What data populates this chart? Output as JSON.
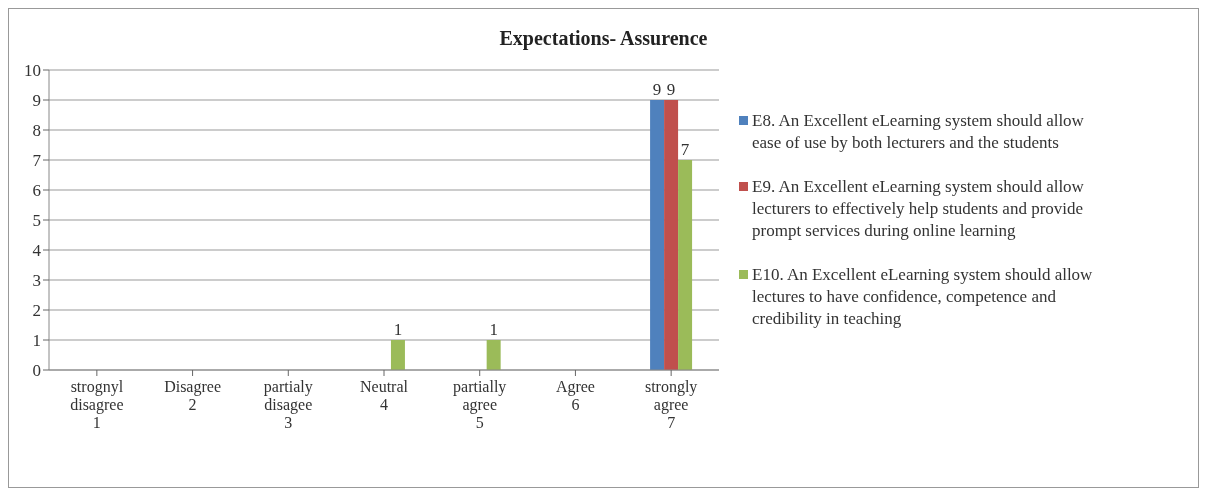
{
  "chart_data": {
    "type": "bar",
    "title": "Expectations- Assurence",
    "categories": [
      "strognyl\ndisagree\n1",
      "Disagree\n2",
      "partialy\ndisagee\n3",
      "Neutral\n4",
      "partially\nagree\n5",
      "Agree\n6",
      "strongly\nagree\n7"
    ],
    "series": [
      {
        "name": "E8. An Excellent eLearning system should allow ease of use by both lecturers and the students",
        "color": "#4f81bd",
        "values": [
          0,
          0,
          0,
          0,
          0,
          0,
          9
        ],
        "value_labels": [
          null,
          null,
          null,
          null,
          null,
          null,
          "9"
        ]
      },
      {
        "name": "E9. An Excellent eLearning system should allow lecturers to effectively help students and provide prompt services during online learning",
        "color": "#c0504d",
        "values": [
          0,
          0,
          0,
          0,
          0,
          0,
          9
        ],
        "value_labels": [
          null,
          null,
          null,
          null,
          null,
          null,
          "9"
        ]
      },
      {
        "name": "E10. An Excellent eLearning system should allow lectures to have confidence, competence and credibility in teaching",
        "color": "#9bbb59",
        "values": [
          0,
          0,
          0,
          1,
          1,
          0,
          7
        ],
        "value_labels": [
          null,
          null,
          null,
          "1",
          "1",
          null,
          "7"
        ]
      }
    ],
    "ylim": [
      0,
      10
    ],
    "yticks": [
      0,
      1,
      2,
      3,
      4,
      5,
      6,
      7,
      8,
      9,
      10
    ],
    "grid": "y",
    "legend": "right"
  }
}
